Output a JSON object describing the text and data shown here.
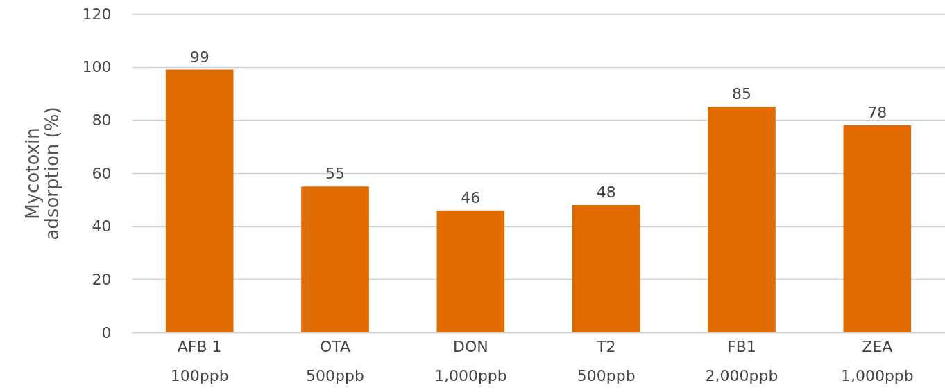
{
  "chart_data": {
    "type": "bar",
    "ylabel": "Mycotoxin\nadsorption (%)",
    "categories": [
      "AFB 1\n100ppb",
      "OTA\n500ppb",
      "DON\n1,000ppb",
      "T2\n500ppb",
      "FB1\n2,000ppb",
      "ZEA\n1,000ppb"
    ],
    "values": [
      99,
      55,
      46,
      48,
      85,
      78
    ],
    "color": "#e06c00",
    "ylim": [
      0,
      120
    ],
    "yticks": [
      0,
      20,
      40,
      60,
      80,
      100,
      120
    ],
    "grid": true,
    "data_labels": true
  }
}
